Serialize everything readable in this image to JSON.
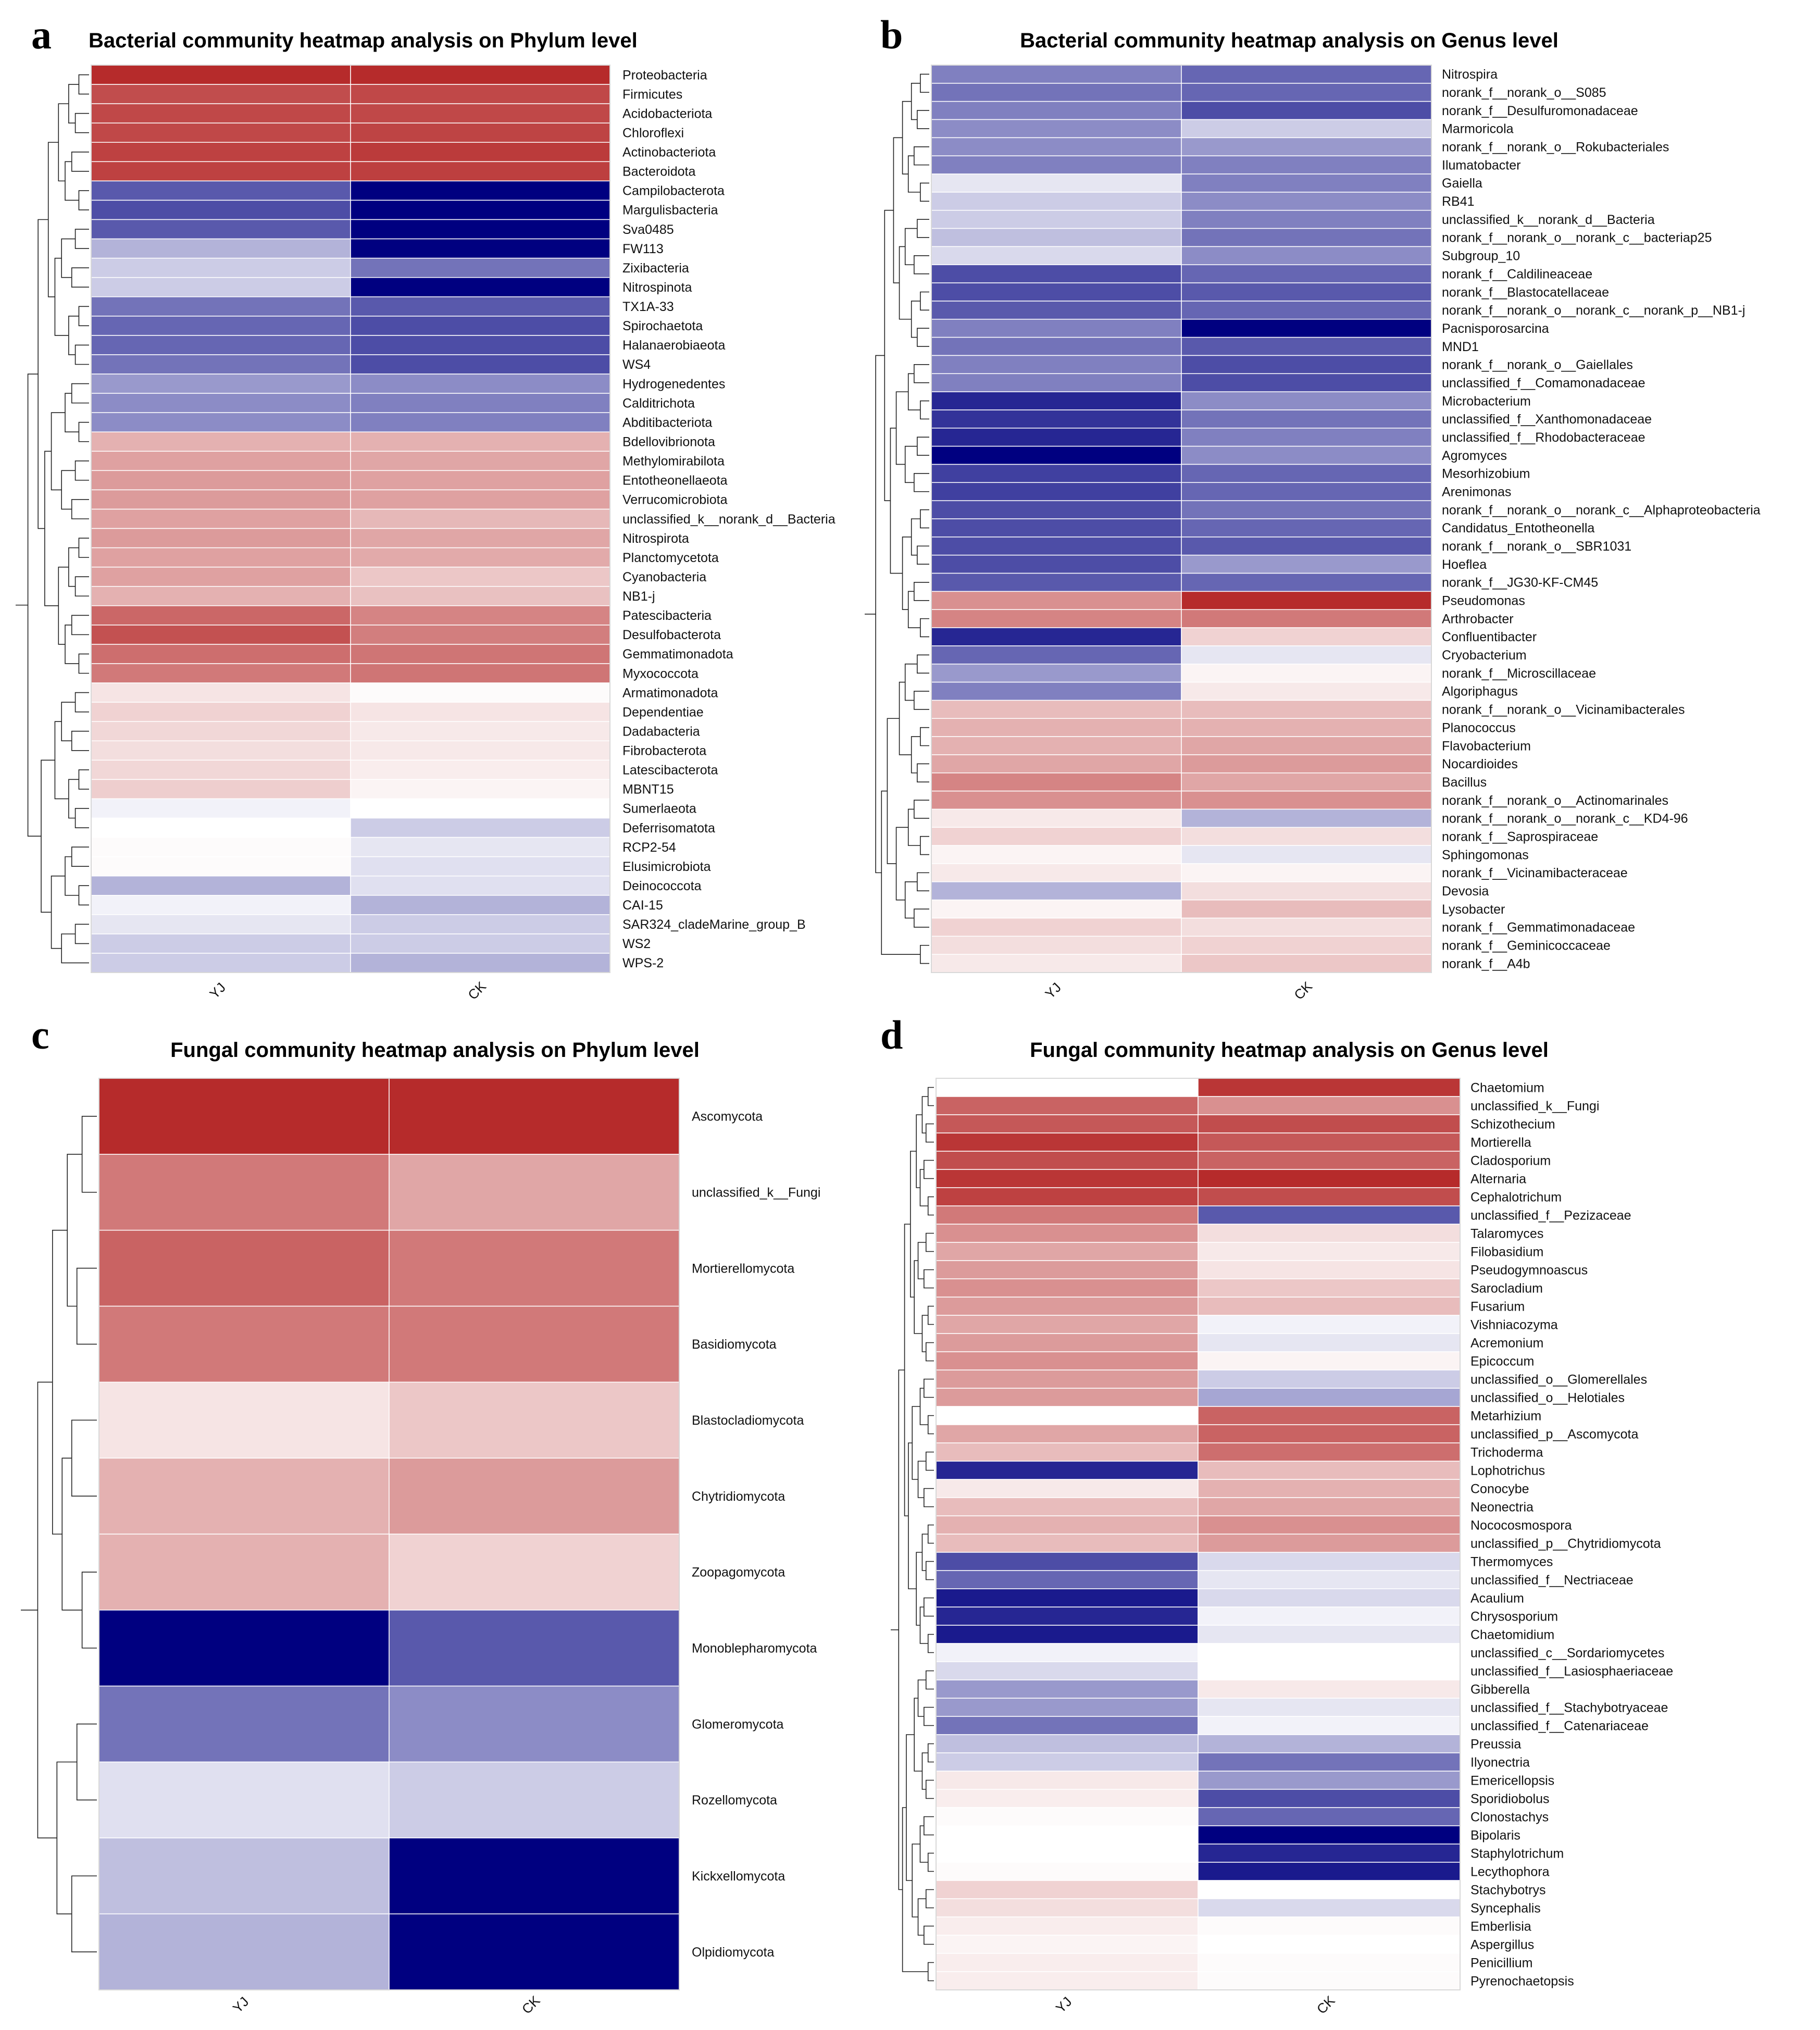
{
  "colors": {
    "high": "#b22020",
    "mid": "#ffffff",
    "low": "#000080"
  },
  "chart_data": [
    {
      "id": "a",
      "type": "heatmap",
      "letter": "a",
      "title": "Bacterial community heatmap analysis on Phylum level",
      "columns": [
        "YJ",
        "CK"
      ],
      "color_scale": "normalized -1 (blue) to 1 (red)",
      "rows": [
        "Proteobacteria",
        "Firmicutes",
        "Acidobacteriota",
        "Chloroflexi",
        "Actinobacteriota",
        "Bacteroidota",
        "Campilobacterota",
        "Margulisbacteria",
        "Sva0485",
        "FW113",
        "Zixibacteria",
        "Nitrospinota",
        "TX1A-33",
        "Spirochaetota",
        "Halanaerobiaeota",
        "WS4",
        "Hydrogenedentes",
        "Calditrichota",
        "Abditibacteriota",
        "Bdellovibrionota",
        "Methylomirabilota",
        "Entotheonellaeota",
        "Verrucomicrobiota",
        "unclassified_k__norank_d__Bacteria",
        "Nitrospirota",
        "Planctomycetota",
        "Cyanobacteria",
        "NB1-j",
        "Patescibacteria",
        "Desulfobacterota",
        "Gemmatimonadota",
        "Myxococcota",
        "Armatimonadota",
        "Dependentiae",
        "Dadabacteria",
        "Fibrobacterota",
        "Latescibacterota",
        "MBNT15",
        "Sumerlaeota",
        "Deferrisomatota",
        "RCP2-54",
        "Elusimicrobiota",
        "Deinococcota",
        "CAI-15",
        "SAR324_cladeMarine_group_B",
        "WS2",
        "WPS-2"
      ],
      "values": [
        [
          0.95,
          0.95
        ],
        [
          0.8,
          0.82
        ],
        [
          0.82,
          0.82
        ],
        [
          0.82,
          0.84
        ],
        [
          0.85,
          0.88
        ],
        [
          0.85,
          0.86
        ],
        [
          -0.65,
          -1.0
        ],
        [
          -0.7,
          -1.0
        ],
        [
          -0.65,
          -1.0
        ],
        [
          -0.3,
          -1.0
        ],
        [
          -0.2,
          -0.55
        ],
        [
          -0.2,
          -1.0
        ],
        [
          -0.55,
          -0.65
        ],
        [
          -0.6,
          -0.7
        ],
        [
          -0.6,
          -0.7
        ],
        [
          -0.55,
          -0.7
        ],
        [
          -0.4,
          -0.45
        ],
        [
          -0.45,
          -0.5
        ],
        [
          -0.45,
          -0.5
        ],
        [
          0.35,
          0.35
        ],
        [
          0.42,
          0.4
        ],
        [
          0.45,
          0.42
        ],
        [
          0.45,
          0.42
        ],
        [
          0.42,
          0.32
        ],
        [
          0.45,
          0.4
        ],
        [
          0.42,
          0.38
        ],
        [
          0.42,
          0.25
        ],
        [
          0.35,
          0.28
        ],
        [
          0.68,
          0.55
        ],
        [
          0.78,
          0.58
        ],
        [
          0.65,
          0.62
        ],
        [
          0.6,
          0.62
        ],
        [
          0.12,
          0.02
        ],
        [
          0.2,
          0.12
        ],
        [
          0.18,
          0.1
        ],
        [
          0.15,
          0.1
        ],
        [
          0.18,
          0.08
        ],
        [
          0.22,
          0.05
        ],
        [
          -0.05,
          0.0
        ],
        [
          0.0,
          -0.2
        ],
        [
          0.02,
          -0.1
        ],
        [
          0.02,
          -0.12
        ],
        [
          -0.3,
          -0.12
        ],
        [
          -0.05,
          -0.3
        ],
        [
          -0.1,
          -0.2
        ],
        [
          -0.2,
          -0.2
        ],
        [
          -0.2,
          -0.3
        ]
      ]
    },
    {
      "id": "b",
      "type": "heatmap",
      "letter": "b",
      "title": "Bacterial community heatmap analysis on Genus level",
      "columns": [
        "YJ",
        "CK"
      ],
      "color_scale": "normalized -1 (blue) to 1 (red)",
      "rows": [
        "Nitrospira",
        "norank_f__norank_o__S085",
        "norank_f__Desulfuromonadaceae",
        "Marmoricola",
        "norank_f__norank_o__Rokubacteriales",
        "Ilumatobacter",
        "Gaiella",
        "RB41",
        "unclassified_k__norank_d__Bacteria",
        "norank_f__norank_o__norank_c__bacteriap25",
        "Subgroup_10",
        "norank_f__Caldilineaceae",
        "norank_f__Blastocatellaceae",
        "norank_f__norank_o__norank_c__norank_p__NB1-j",
        "Pacnisporosarcina",
        "MND1",
        "norank_f__norank_o__Gaiellales",
        "unclassified_f__Comamonadaceae",
        "Microbacterium",
        "unclassified_f__Xanthomonadaceae",
        "unclassified_f__Rhodobacteraceae",
        "Agromyces",
        "Mesorhizobium",
        "Arenimonas",
        "norank_f__norank_o__norank_c__Alphaproteobacteria",
        "Candidatus_Entotheonella",
        "norank_f__norank_o__SBR1031",
        "Hoeflea",
        "norank_f__JG30-KF-CM45",
        "Pseudomonas",
        "Arthrobacter",
        "Confluentibacter",
        "Cryobacterium",
        "norank_f__Microscillaceae",
        "Algoriphagus",
        "norank_f__norank_o__Vicinamibacterales",
        "Planococcus",
        "Flavobacterium",
        "Nocardioides",
        "Bacillus",
        "norank_f__norank_o__Actinomarinales",
        "norank_f__norank_o__norank_c__KD4-96",
        "norank_f__Saprospiraceae",
        "Sphingomonas",
        "norank_f__Vicinamibacteraceae",
        "Devosia",
        "Lysobacter",
        "norank_f__Gemmatimonadaceae",
        "norank_f__Geminicoccaceae",
        "norank_f__A4b"
      ],
      "values": [
        [
          -0.5,
          -0.6
        ],
        [
          -0.55,
          -0.6
        ],
        [
          -0.5,
          -0.7
        ],
        [
          -0.45,
          -0.2
        ],
        [
          -0.45,
          -0.4
        ],
        [
          -0.5,
          -0.5
        ],
        [
          -0.1,
          -0.5
        ],
        [
          -0.2,
          -0.45
        ],
        [
          -0.2,
          -0.5
        ],
        [
          -0.25,
          -0.55
        ],
        [
          -0.15,
          -0.45
        ],
        [
          -0.7,
          -0.6
        ],
        [
          -0.7,
          -0.65
        ],
        [
          -0.65,
          -0.6
        ],
        [
          -0.5,
          -1.0
        ],
        [
          -0.55,
          -0.65
        ],
        [
          -0.5,
          -0.7
        ],
        [
          -0.5,
          -0.7
        ],
        [
          -0.85,
          -0.45
        ],
        [
          -0.8,
          -0.55
        ],
        [
          -0.85,
          -0.5
        ],
        [
          -1.0,
          -0.45
        ],
        [
          -0.75,
          -0.6
        ],
        [
          -0.75,
          -0.6
        ],
        [
          -0.7,
          -0.55
        ],
        [
          -0.7,
          -0.6
        ],
        [
          -0.7,
          -0.65
        ],
        [
          -0.7,
          -0.4
        ],
        [
          -0.65,
          -0.6
        ],
        [
          0.5,
          0.95
        ],
        [
          0.55,
          0.6
        ],
        [
          -0.85,
          0.2
        ],
        [
          -0.6,
          -0.1
        ],
        [
          -0.4,
          0.05
        ],
        [
          -0.5,
          0.1
        ],
        [
          0.3,
          0.3
        ],
        [
          0.35,
          0.35
        ],
        [
          0.35,
          0.4
        ],
        [
          0.4,
          0.45
        ],
        [
          0.55,
          0.4
        ],
        [
          0.5,
          0.5
        ],
        [
          0.1,
          -0.3
        ],
        [
          0.2,
          0.15
        ],
        [
          0.05,
          -0.1
        ],
        [
          0.1,
          0.05
        ],
        [
          -0.3,
          0.15
        ],
        [
          0.05,
          0.3
        ],
        [
          0.2,
          0.15
        ],
        [
          0.15,
          0.2
        ],
        [
          0.1,
          0.25
        ]
      ]
    },
    {
      "id": "c",
      "type": "heatmap",
      "letter": "c",
      "title": "Fungal community heatmap analysis on Phylum level",
      "columns": [
        "YJ",
        "CK"
      ],
      "color_scale": "normalized -1 (blue) to 1 (red)",
      "rows": [
        "Ascomycota",
        "unclassified_k__Fungi",
        "Mortierellomycota",
        "Basidiomycota",
        "Blastocladiomycota",
        "Chytridiomycota",
        "Zoopagomycota",
        "Monoblepharomycota",
        "Glomeromycota",
        "Rozellomycota",
        "Kickxellomycota",
        "Olpidiomycota"
      ],
      "values": [
        [
          0.95,
          0.95
        ],
        [
          0.6,
          0.4
        ],
        [
          0.7,
          0.6
        ],
        [
          0.6,
          0.6
        ],
        [
          0.12,
          0.25
        ],
        [
          0.35,
          0.45
        ],
        [
          0.35,
          0.2
        ],
        [
          -1.0,
          -0.65
        ],
        [
          -0.55,
          -0.45
        ],
        [
          -0.12,
          -0.2
        ],
        [
          -0.25,
          -1.0
        ],
        [
          -0.3,
          -1.0
        ]
      ]
    },
    {
      "id": "d",
      "type": "heatmap",
      "letter": "d",
      "title": "Fungal community heatmap analysis on Genus level",
      "columns": [
        "YJ",
        "CK"
      ],
      "color_scale": "normalized -1 (blue) to 1 (red)",
      "rows": [
        "Chaetomium",
        "unclassified_k__Fungi",
        "Schizothecium",
        "Mortierella",
        "Cladosporium",
        "Alternaria",
        "Cephalotrichum",
        "unclassified_f__Pezizaceae",
        "Talaromyces",
        "Filobasidium",
        "Pseudogymnoascus",
        "Sarocladium",
        "Fusarium",
        "Vishniacozyma",
        "Acremonium",
        "Epicoccum",
        "unclassified_o__Glomerellales",
        "unclassified_o__Helotiales",
        "Metarhizium",
        "unclassified_p__Ascomycota",
        "Trichoderma",
        "Lophotrichus",
        "Conocybe",
        "Neonectria",
        "Nococosmospora",
        "unclassified_p__Chytridiomycota",
        "Thermomyces",
        "unclassified_f__Nectriaceae",
        "Acaulium",
        "Chrysosporium",
        "Chaetomidium",
        "unclassified_c__Sordariomycetes",
        "unclassified_f__Lasiosphaeriaceae",
        "Gibberella",
        "unclassified_f__Stachybotryaceae",
        "unclassified_f__Catenariaceae",
        "Preussia",
        "Ilyonectria",
        "Emericellopsis",
        "Sporidiobolus",
        "Clonostachys",
        "Bipolaris",
        "Staphylotrichum",
        "Lecythophora",
        "Stachybotrys",
        "Syncephalis",
        "Emberlisia",
        "Aspergillus",
        "Penicillium",
        "Pyrenochaetopsis"
      ],
      "values": [
        [
          0.0,
          0.9
        ],
        [
          0.7,
          0.5
        ],
        [
          0.75,
          0.8
        ],
        [
          0.9,
          0.75
        ],
        [
          0.8,
          0.7
        ],
        [
          0.9,
          0.95
        ],
        [
          0.85,
          0.8
        ],
        [
          0.6,
          -0.65
        ],
        [
          0.5,
          0.15
        ],
        [
          0.4,
          0.1
        ],
        [
          0.45,
          0.12
        ],
        [
          0.5,
          0.25
        ],
        [
          0.45,
          0.3
        ],
        [
          0.4,
          -0.05
        ],
        [
          0.45,
          -0.1
        ],
        [
          0.5,
          0.05
        ],
        [
          0.45,
          -0.2
        ],
        [
          0.45,
          -0.35
        ],
        [
          0.0,
          0.7
        ],
        [
          0.4,
          0.7
        ],
        [
          0.3,
          0.65
        ],
        [
          -0.85,
          0.3
        ],
        [
          0.1,
          0.35
        ],
        [
          0.3,
          0.4
        ],
        [
          0.35,
          0.5
        ],
        [
          0.3,
          0.45
        ],
        [
          -0.7,
          -0.15
        ],
        [
          -0.6,
          -0.1
        ],
        [
          -0.9,
          -0.15
        ],
        [
          -0.85,
          -0.05
        ],
        [
          -0.9,
          -0.1
        ],
        [
          -0.05,
          0.0
        ],
        [
          -0.15,
          0.0
        ],
        [
          -0.4,
          0.1
        ],
        [
          -0.4,
          -0.1
        ],
        [
          -0.55,
          -0.05
        ],
        [
          -0.25,
          -0.3
        ],
        [
          -0.2,
          -0.55
        ],
        [
          0.1,
          -0.4
        ],
        [
          0.08,
          -0.7
        ],
        [
          0.02,
          -0.6
        ],
        [
          0.0,
          -1.0
        ],
        [
          0.0,
          -0.85
        ],
        [
          0.02,
          -0.9
        ],
        [
          0.2,
          0.0
        ],
        [
          0.15,
          -0.15
        ],
        [
          0.08,
          0.02
        ],
        [
          0.05,
          0.0
        ],
        [
          0.08,
          0.02
        ],
        [
          0.08,
          0.02
        ]
      ]
    }
  ]
}
